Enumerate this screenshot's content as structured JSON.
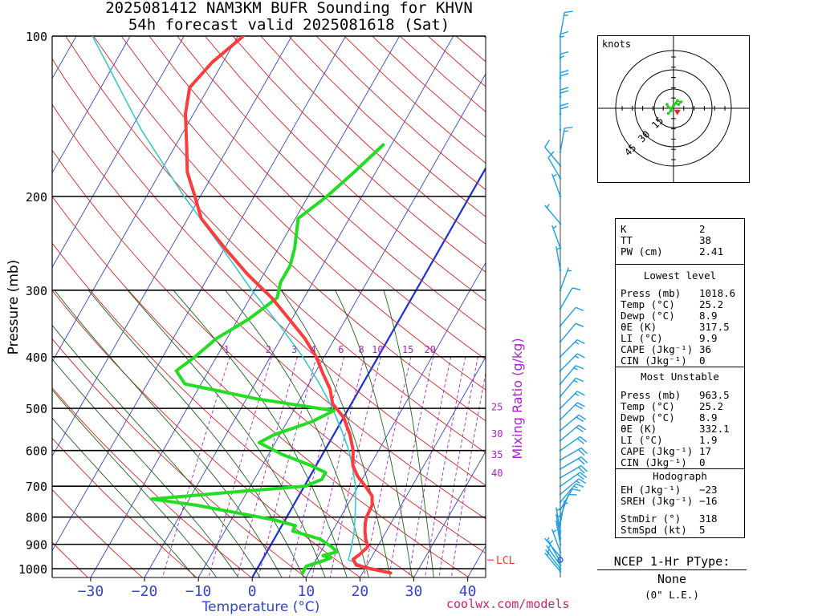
{
  "header": {
    "title_line1": "2025081412 NAM3KM BUFR Sounding for KHVN",
    "title_line2": "54h forecast valid 2025081618 (Sat)"
  },
  "colors": {
    "temperature": "#ff3b3b",
    "dewpoint": "#22dd22",
    "parcel": "#33cccc",
    "isotherm": "#3344cc",
    "dry_adiabat": "#dd2222",
    "moist_adiabat": "#1a661a",
    "mixing_ratio": "#aa22cc",
    "wind": "#1a9fe6",
    "zero_isotherm": "#1a2fdd",
    "lcl": "#ff3333",
    "axis_label": "#3344cc",
    "watermark": "#cc2266"
  },
  "chart_data": {
    "type": "line",
    "title": "2025081412 NAM3KM BUFR Sounding for KHVN",
    "subtitle": "54h forecast valid 2025081618 (Sat)",
    "xlabel": "Temperature (°C)",
    "ylabel": "Pressure (mb)",
    "right_label": "Mixing Ratio (g/kg)",
    "x_ticks": [
      "−30",
      "−20",
      "−10",
      "0",
      "10",
      "20",
      "30",
      "40"
    ],
    "x_tick_values": [
      -30,
      -20,
      -10,
      0,
      10,
      20,
      30,
      40
    ],
    "y_ticks": [
      "100",
      "200",
      "300",
      "400",
      "500",
      "600",
      "700",
      "800",
      "900",
      "1000"
    ],
    "y_tick_values": [
      100,
      200,
      300,
      400,
      500,
      600,
      700,
      800,
      900,
      1000
    ],
    "pressure_range": [
      100,
      1050
    ],
    "mixing_ratio_top_labels": [
      "1",
      "2",
      "3",
      "4",
      "6",
      "8",
      "10",
      "15",
      "20"
    ],
    "mixing_ratio_top_values": [
      1,
      2,
      3,
      4,
      6,
      8,
      10,
      15,
      20
    ],
    "mixing_ratio_side_labels": [
      "25",
      "30",
      "35",
      "40"
    ],
    "mixing_ratio_side_values": [
      25,
      30,
      35,
      40
    ],
    "lcl_label": "LCL",
    "lcl_pressure": 963,
    "series": [
      {
        "name": "Temperature",
        "points": [
          [
            1018.6,
            25.2
          ],
          [
            1000,
            21
          ],
          [
            985,
            18
          ],
          [
            960,
            16.8
          ],
          [
            940,
            17.5
          ],
          [
            910,
            18.2
          ],
          [
            880,
            17
          ],
          [
            850,
            16
          ],
          [
            820,
            15.2
          ],
          [
            800,
            14.8
          ],
          [
            760,
            14.6
          ],
          [
            730,
            13.6
          ],
          [
            700,
            11.3
          ],
          [
            670,
            8.8
          ],
          [
            640,
            6.8
          ],
          [
            600,
            5.3
          ],
          [
            560,
            3
          ],
          [
            520,
            0
          ],
          [
            490,
            -3.5
          ],
          [
            460,
            -5.5
          ],
          [
            430,
            -8.5
          ],
          [
            400,
            -11.5
          ],
          [
            370,
            -15.5
          ],
          [
            340,
            -20.5
          ],
          [
            310,
            -26
          ],
          [
            280,
            -33
          ],
          [
            250,
            -40
          ],
          [
            220,
            -47.5
          ],
          [
            200,
            -51
          ],
          [
            180,
            -55
          ],
          [
            160,
            -58
          ],
          [
            140,
            -61.5
          ],
          [
            125,
            -63.5
          ],
          [
            112,
            -62
          ],
          [
            100,
            -59
          ]
        ]
      },
      {
        "name": "Dewpoint",
        "points": [
          [
            1018.6,
            8.9
          ],
          [
            990,
            8.8
          ],
          [
            970,
            11
          ],
          [
            955,
            12.5
          ],
          [
            945,
            10.8
          ],
          [
            930,
            13
          ],
          [
            910,
            11.5
          ],
          [
            880,
            8.5
          ],
          [
            850,
            2.6
          ],
          [
            830,
            2.5
          ],
          [
            810,
            -2
          ],
          [
            760,
            -18
          ],
          [
            740,
            -27
          ],
          [
            720,
            -14
          ],
          [
            700,
            0.2
          ],
          [
            680,
            2.5
          ],
          [
            660,
            2.5
          ],
          [
            640,
            -1
          ],
          [
            610,
            -7.5
          ],
          [
            580,
            -13
          ],
          [
            560,
            -11
          ],
          [
            530,
            -5.5
          ],
          [
            505,
            -2.5
          ],
          [
            480,
            -18
          ],
          [
            450,
            -33
          ],
          [
            425,
            -36
          ],
          [
            400,
            -34
          ],
          [
            370,
            -32
          ],
          [
            340,
            -28
          ],
          [
            310,
            -25
          ],
          [
            290,
            -26
          ],
          [
            270,
            -26
          ],
          [
            250,
            -27
          ],
          [
            220,
            -29.5
          ],
          [
            200,
            -26.5
          ],
          [
            180,
            -24
          ],
          [
            160,
            -21.5
          ]
        ]
      },
      {
        "name": "Parcel",
        "points": [
          [
            1000,
            21
          ],
          [
            963,
            16
          ],
          [
            900,
            15
          ],
          [
            850,
            14
          ],
          [
            800,
            12.7
          ],
          [
            750,
            11.2
          ],
          [
            700,
            9.5
          ],
          [
            650,
            7.2
          ],
          [
            600,
            4.5
          ],
          [
            550,
            1
          ],
          [
            500,
            -3
          ],
          [
            450,
            -8
          ],
          [
            400,
            -14
          ],
          [
            350,
            -21.5
          ],
          [
            300,
            -30.5
          ],
          [
            250,
            -40.5
          ],
          [
            200,
            -53
          ],
          [
            150,
            -68
          ],
          [
            100,
            -87
          ]
        ]
      }
    ]
  },
  "wind_barbs": [
    {
      "p": 1012,
      "dir": 320,
      "spd": 5
    },
    {
      "p": 1000,
      "dir": 322,
      "spd": 5
    },
    {
      "p": 985,
      "dir": 325,
      "spd": 5
    },
    {
      "p": 970,
      "dir": 330,
      "spd": 5
    },
    {
      "p": 950,
      "dir": 320,
      "spd": 5
    },
    {
      "p": 930,
      "dir": 340,
      "spd": 5
    },
    {
      "p": 900,
      "dir": 350,
      "spd": 5
    },
    {
      "p": 875,
      "dir": 350,
      "spd": 5
    },
    {
      "p": 850,
      "dir": 350,
      "spd": 5
    },
    {
      "p": 825,
      "dir": 10,
      "spd": 5
    },
    {
      "p": 800,
      "dir": 20,
      "spd": 10
    },
    {
      "p": 775,
      "dir": 30,
      "spd": 10
    },
    {
      "p": 750,
      "dir": 40,
      "spd": 15
    },
    {
      "p": 725,
      "dir": 50,
      "spd": 15
    },
    {
      "p": 700,
      "dir": 55,
      "spd": 20
    },
    {
      "p": 675,
      "dir": 60,
      "spd": 20
    },
    {
      "p": 650,
      "dir": 60,
      "spd": 20
    },
    {
      "p": 625,
      "dir": 60,
      "spd": 20
    },
    {
      "p": 600,
      "dir": 55,
      "spd": 20
    },
    {
      "p": 575,
      "dir": 50,
      "spd": 20
    },
    {
      "p": 550,
      "dir": 50,
      "spd": 20
    },
    {
      "p": 525,
      "dir": 45,
      "spd": 20
    },
    {
      "p": 500,
      "dir": 45,
      "spd": 15
    },
    {
      "p": 475,
      "dir": 40,
      "spd": 15
    },
    {
      "p": 450,
      "dir": 40,
      "spd": 15
    },
    {
      "p": 425,
      "dir": 45,
      "spd": 15
    },
    {
      "p": 400,
      "dir": 45,
      "spd": 15
    },
    {
      "p": 375,
      "dir": 40,
      "spd": 10
    },
    {
      "p": 350,
      "dir": 40,
      "spd": 10
    },
    {
      "p": 325,
      "dir": 30,
      "spd": 10
    },
    {
      "p": 300,
      "dir": 20,
      "spd": 5
    },
    {
      "p": 275,
      "dir": 350,
      "spd": 5
    },
    {
      "p": 250,
      "dir": 340,
      "spd": 5
    },
    {
      "p": 225,
      "dir": 320,
      "spd": 5
    },
    {
      "p": 200,
      "dir": 340,
      "spd": 5
    },
    {
      "p": 185,
      "dir": 330,
      "spd": 10
    },
    {
      "p": 175,
      "dir": 320,
      "spd": 10
    },
    {
      "p": 165,
      "dir": 10,
      "spd": 15
    },
    {
      "p": 150,
      "dir": 360,
      "spd": 20
    },
    {
      "p": 140,
      "dir": 360,
      "spd": 20
    },
    {
      "p": 130,
      "dir": 360,
      "spd": 20
    },
    {
      "p": 120,
      "dir": 360,
      "spd": 15
    },
    {
      "p": 110,
      "dir": 360,
      "spd": 15
    },
    {
      "p": 100,
      "dir": 10,
      "spd": 15
    }
  ],
  "hodograph": {
    "unit_label": "knots",
    "ring_labels": [
      "15",
      "30",
      "45"
    ],
    "ring_values": [
      15,
      30,
      45
    ],
    "trace_uv": [
      [
        -4,
        -4
      ],
      [
        -2,
        -2
      ],
      [
        0,
        2
      ],
      [
        2,
        4
      ],
      [
        4,
        3
      ],
      [
        6,
        5
      ],
      [
        3,
        6
      ],
      [
        0,
        2
      ],
      [
        -2,
        0
      ],
      [
        -4,
        1
      ],
      [
        -5,
        3
      ]
    ],
    "storm_motion_uv": [
      3,
      -3
    ]
  },
  "params": {
    "k_label": "K",
    "k_value": "2",
    "tt_label": "TT",
    "tt_value": "38",
    "pw_label": "PW (cm)",
    "pw_value": "2.41",
    "lowest_header": "Lowest level",
    "ll_press_label": "Press (mb)",
    "ll_press_value": "1018.6",
    "ll_temp_label": "Temp (°C)",
    "ll_temp_value": "25.2",
    "ll_dewp_label": "Dewp (°C)",
    "ll_dewp_value": "8.9",
    "ll_thetae_label": "θE (K)",
    "ll_thetae_value": "317.5",
    "ll_li_label": "LI (°C)",
    "ll_li_value": "9.9",
    "ll_cape_label": "CAPE (Jkg⁻¹)",
    "ll_cape_value": "36",
    "ll_cin_label": "CIN (Jkg⁻¹)",
    "ll_cin_value": "0",
    "mu_header": "Most Unstable",
    "mu_press_label": "Press (mb)",
    "mu_press_value": "963.5",
    "mu_temp_label": "Temp (°C)",
    "mu_temp_value": "25.2",
    "mu_dewp_label": "Dewp (°C)",
    "mu_dewp_value": "8.9",
    "mu_thetae_label": "θE (K)",
    "mu_thetae_value": "332.1",
    "mu_li_label": "LI (°C)",
    "mu_li_value": "1.9",
    "mu_cape_label": "CAPE (Jkg⁻¹)",
    "mu_cape_value": "17",
    "mu_cin_label": "CIN (Jkg⁻¹)",
    "mu_cin_value": "0",
    "hodo_header": "Hodograph",
    "eh_label": "EH (Jkg⁻¹)",
    "eh_value": "−23",
    "sreh_label": "SREH (Jkg⁻¹)",
    "sreh_value": "−16",
    "stmdir_label": "StmDir (°)",
    "stmdir_value": "318",
    "stmspd_label": "StmSpd (kt)",
    "stmspd_value": "5"
  },
  "ptype": {
    "title": "NCEP 1-Hr PType:",
    "value": "None",
    "amount": "(0\" L.E.)"
  },
  "footer": {
    "watermark": "coolwx.com/models"
  }
}
